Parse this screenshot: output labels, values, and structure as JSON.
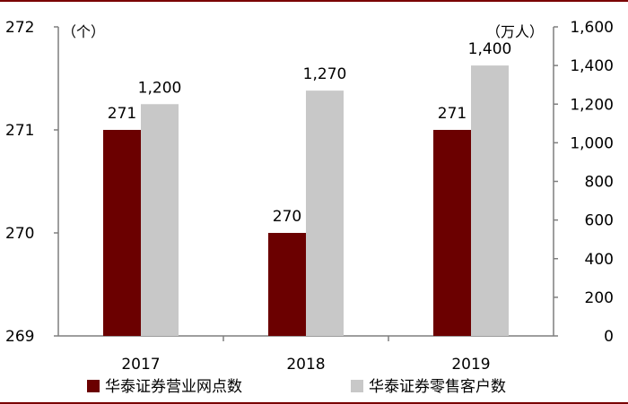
{
  "chart_data": {
    "type": "bar",
    "categories": [
      "2017",
      "2018",
      "2019"
    ],
    "series": [
      {
        "name": "华泰证券营业网点数",
        "axis": "left",
        "color": "#6b0000",
        "values": [
          271,
          270,
          271
        ],
        "labels": [
          "271",
          "270",
          "271"
        ]
      },
      {
        "name": "华泰证券零售客户数",
        "axis": "right",
        "color": "#c8c8c8",
        "values": [
          1200,
          1270,
          1400
        ],
        "labels": [
          "1,200",
          "1,270",
          "1,400"
        ]
      }
    ],
    "left_axis": {
      "unit": "（个）",
      "ylim": [
        269,
        272
      ],
      "ticks": [
        "269",
        "270",
        "271",
        "272"
      ]
    },
    "right_axis": {
      "unit": "（万人）",
      "ylim": [
        0,
        1600
      ],
      "ticks": [
        "0",
        "200",
        "400",
        "600",
        "800",
        "1,000",
        "1,200",
        "1,400",
        "1,600"
      ]
    },
    "grid": false,
    "legend_position": "bottom"
  }
}
